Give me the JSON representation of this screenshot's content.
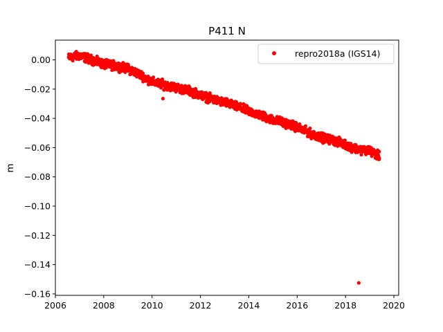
{
  "chart_data": {
    "type": "scatter",
    "title": "P411 N",
    "xlabel": "",
    "ylabel": "m",
    "xlim": [
      2006.0,
      2020.2
    ],
    "ylim": [
      -0.161,
      0.0135
    ],
    "x_ticks": [
      2006,
      2008,
      2010,
      2012,
      2014,
      2016,
      2018,
      2020
    ],
    "x_tick_labels": [
      "2006",
      "2008",
      "2010",
      "2012",
      "2014",
      "2016",
      "2018",
      "2020"
    ],
    "y_ticks": [
      0.0,
      -0.02,
      -0.04,
      -0.06,
      -0.08,
      -0.1,
      -0.12,
      -0.14,
      -0.16
    ],
    "y_tick_labels": [
      "0.00",
      "−0.02",
      "−0.04",
      "−0.06",
      "−0.08",
      "−0.10",
      "−0.12",
      "−0.14",
      "−0.16"
    ],
    "grid": false,
    "legend_position": "top-right",
    "series": [
      {
        "name": "repro2018a (IGS14)",
        "color": "#ff0000",
        "marker": "circle",
        "trend": [
          [
            2006.55,
            0.0015
          ],
          [
            2007.0,
            0.003
          ],
          [
            2007.5,
            0.0
          ],
          [
            2008.0,
            -0.003
          ],
          [
            2008.5,
            -0.004
          ],
          [
            2009.0,
            -0.006
          ],
          [
            2009.5,
            -0.01
          ],
          [
            2010.0,
            -0.015
          ],
          [
            2010.5,
            -0.017
          ],
          [
            2011.0,
            -0.019
          ],
          [
            2011.5,
            -0.021
          ],
          [
            2012.0,
            -0.024
          ],
          [
            2012.5,
            -0.027
          ],
          [
            2013.0,
            -0.029
          ],
          [
            2013.5,
            -0.032
          ],
          [
            2014.0,
            -0.035
          ],
          [
            2014.5,
            -0.038
          ],
          [
            2015.0,
            -0.041
          ],
          [
            2015.5,
            -0.043
          ],
          [
            2016.0,
            -0.046
          ],
          [
            2016.5,
            -0.05
          ],
          [
            2017.0,
            -0.053
          ],
          [
            2017.5,
            -0.055
          ],
          [
            2018.0,
            -0.058
          ],
          [
            2018.5,
            -0.061
          ],
          [
            2019.0,
            -0.062
          ],
          [
            2019.4,
            -0.066
          ]
        ],
        "outliers": [
          [
            2010.45,
            -0.0265
          ],
          [
            2018.55,
            -0.1525
          ]
        ]
      }
    ]
  }
}
